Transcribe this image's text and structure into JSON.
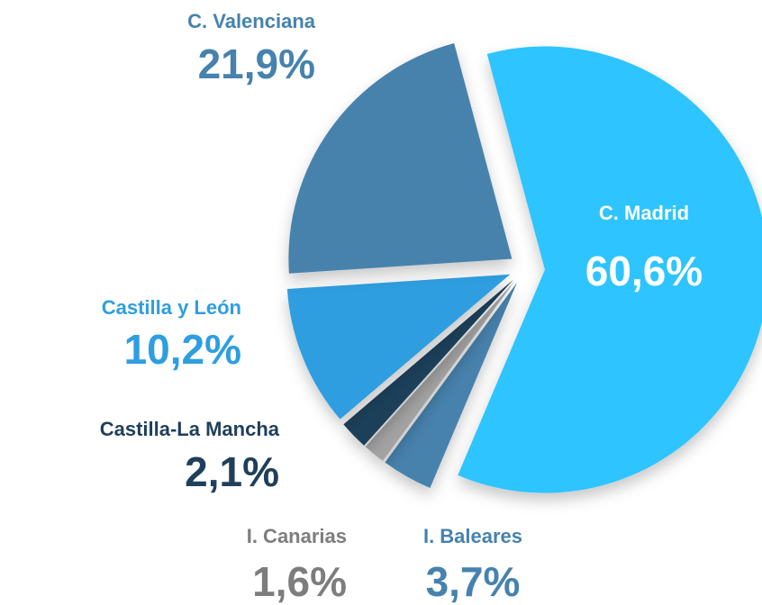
{
  "chart_data": {
    "type": "pie",
    "categories": [
      "C. Madrid",
      "I. Baleares",
      "I. Canarias",
      "Castilla-La Mancha",
      "Castilla y León",
      "C. Valenciana"
    ],
    "values": [
      60.6,
      3.7,
      1.6,
      2.1,
      10.2,
      21.9
    ],
    "value_labels": [
      "60,6%",
      "3,7%",
      "1,6%",
      "2,1%",
      "10,2%",
      "21,9%"
    ],
    "colors": [
      "#2ec4ff",
      "#4682ad",
      "#a3a3a3",
      "#1f3f5a",
      "#2e9ee0",
      "#4682ad"
    ],
    "label_colors": [
      "#ffffff",
      "#4682ad",
      "#7d7d7d",
      "#1f3f5a",
      "#2e9ee0",
      "#4682ad"
    ]
  }
}
